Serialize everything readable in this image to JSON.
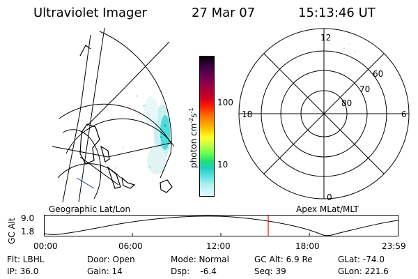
{
  "header": {
    "instrument": "Ultraviolet Imager",
    "date": "27 Mar 07",
    "time": "15:13:46 UT"
  },
  "colorbar": {
    "label": "photon cm",
    "label_exp1": "-2",
    "label_s": "s",
    "label_exp2": "-1",
    "ticks": [
      "100",
      "10"
    ],
    "colors": [
      "#000000",
      "#3a0040",
      "#6a0050",
      "#a00040",
      "#d00020",
      "#ff2000",
      "#ff6a00",
      "#ffa000",
      "#ffd000",
      "#ffff30",
      "#c8ff40",
      "#70ff50",
      "#20e070",
      "#20d0c0",
      "#60e0e0",
      "#b0f0f0",
      "#e0ffff"
    ]
  },
  "left_panel": {
    "label": "Geographic Lat/Lon"
  },
  "right_panel": {
    "label": "Apex MLat/MLT",
    "hour_labels": {
      "top": "12",
      "left": "18",
      "right": "6",
      "bottom": "0"
    },
    "lat_labels": [
      "60",
      "70",
      "80"
    ]
  },
  "timeline": {
    "ylabel": "GC Alt",
    "yticks": [
      "9.0",
      "1.8"
    ],
    "xticks": [
      "00:00",
      "06:00",
      "12:00",
      "18:00",
      "23:59"
    ],
    "marker_color": "#ff0000"
  },
  "status": {
    "flt": "Flt: LBHL",
    "ip": "IP: 36.0",
    "door": "Door: Open",
    "gain": "Gain: 14",
    "mode": "Mode: Normal",
    "dsp": "Dsp:    -6.4",
    "gcalt": "GC Alt: 6.9 Re",
    "seq": "Seq: 39",
    "glat": "GLat: -74.0",
    "glon": "GLon: 221.6"
  }
}
